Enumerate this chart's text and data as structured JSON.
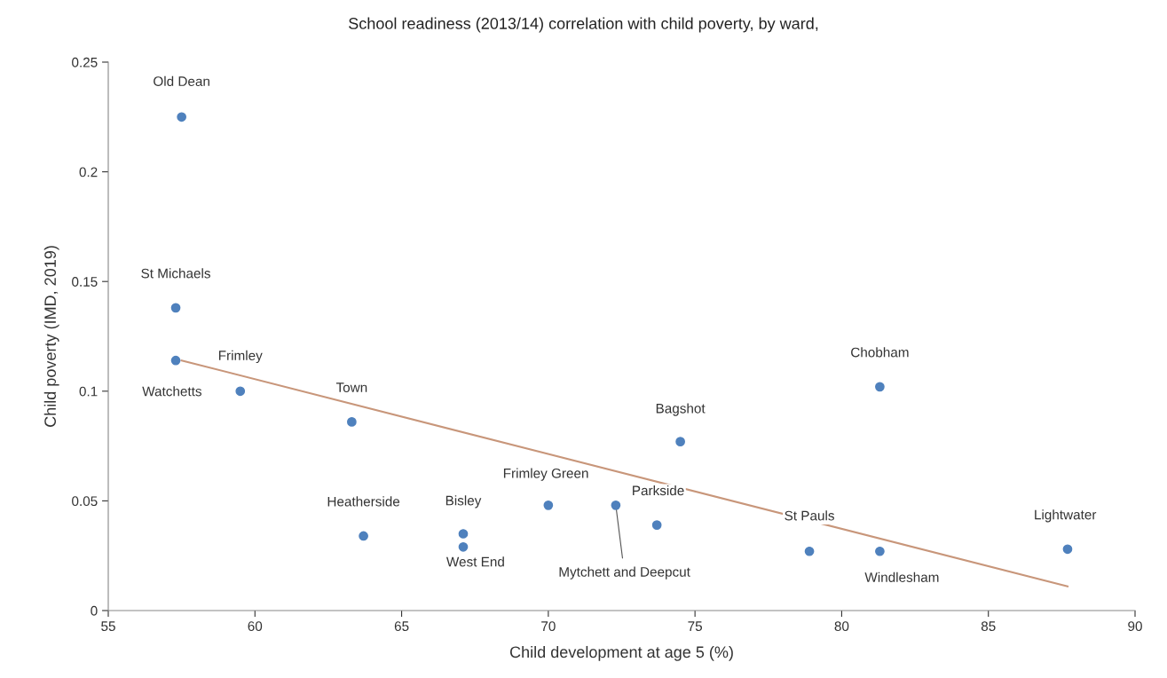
{
  "chart_data": {
    "type": "scatter",
    "title": "School readiness (2013/14) correlation with child poverty, by ward,",
    "xlabel": "Child development at age 5 (%)",
    "ylabel": "Child poverty (IMD, 2019)",
    "series": [
      {
        "color": "#4f81bd",
        "marker": "circle",
        "x": [
          57.5,
          57.3,
          57.3,
          59.5,
          63.3,
          63.7,
          67.1,
          67.1,
          70.0,
          72.3,
          73.7,
          74.5,
          78.9,
          81.3,
          81.3,
          87.7
        ],
        "values": [
          0.225,
          0.138,
          0.114,
          0.1,
          0.086,
          0.034,
          0.035,
          0.029,
          0.048,
          0.048,
          0.039,
          0.077,
          0.027,
          0.027,
          0.102,
          0.028
        ]
      },
      {
        "type": "line",
        "color": "#c8967a",
        "x": [
          57.5,
          87.7
        ],
        "values": [
          0.114,
          0.011
        ]
      }
    ],
    "annotations": [
      {
        "text": "Old Dean",
        "x": 57.5,
        "y": 0.225
      },
      {
        "text": "St Michaels",
        "x": 57.3,
        "y": 0.138
      },
      {
        "text": "Watchetts",
        "x": 57.3,
        "y": 0.114
      },
      {
        "text": "Frimley",
        "x": 59.5,
        "y": 0.1
      },
      {
        "text": "Town",
        "x": 63.3,
        "y": 0.086
      },
      {
        "text": "Heatherside",
        "x": 63.7,
        "y": 0.034
      },
      {
        "text": "Bisley",
        "x": 67.1,
        "y": 0.035
      },
      {
        "text": "West End",
        "x": 67.1,
        "y": 0.029
      },
      {
        "text": "Frimley Green",
        "x": 70.0,
        "y": 0.048
      },
      {
        "text": "Mytchett and Deepcut",
        "x": 72.3,
        "y": 0.048
      },
      {
        "text": "Parkside",
        "x": 73.7,
        "y": 0.039
      },
      {
        "text": "Bagshot",
        "x": 74.5,
        "y": 0.077
      },
      {
        "text": "St Pauls",
        "x": 78.9,
        "y": 0.027
      },
      {
        "text": "Windlesham",
        "x": 81.3,
        "y": 0.027
      },
      {
        "text": "Chobham",
        "x": 81.3,
        "y": 0.102
      },
      {
        "text": "Lightwater",
        "x": 87.7,
        "y": 0.028
      }
    ],
    "xlim": [
      55,
      90
    ],
    "xticks": [
      55,
      60,
      65,
      70,
      75,
      80,
      85,
      90
    ],
    "ylim": [
      0,
      0.25
    ],
    "yticks": [
      0,
      0.05,
      0.1,
      0.15,
      0.2,
      0.25
    ],
    "grid": false,
    "legend": false
  }
}
